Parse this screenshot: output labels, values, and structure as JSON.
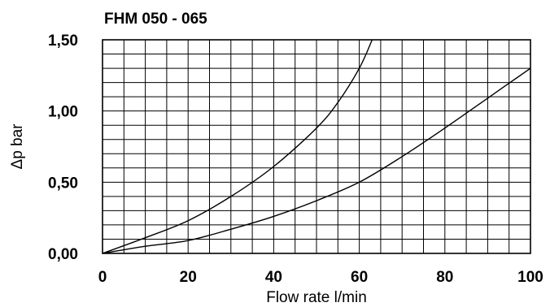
{
  "chart_data": {
    "type": "line",
    "title": "FHM 050 - 065",
    "xlabel": "Flow rate l/min",
    "ylabel": "Δp bar",
    "xlim": [
      0,
      100
    ],
    "ylim": [
      0,
      1.5
    ],
    "grid": true,
    "x_ticks": [
      {
        "value": 0,
        "label": "0"
      },
      {
        "value": 20,
        "label": "20"
      },
      {
        "value": 40,
        "label": "40"
      },
      {
        "value": 60,
        "label": "60"
      },
      {
        "value": 80,
        "label": "80"
      },
      {
        "value": 100,
        "label": "100"
      }
    ],
    "y_ticks": [
      {
        "value": 0,
        "label": "0,00"
      },
      {
        "value": 0.5,
        "label": "0,50"
      },
      {
        "value": 1.0,
        "label": "1,00"
      },
      {
        "value": 1.5,
        "label": "1,50"
      }
    ],
    "series": [
      {
        "x": [
          0,
          10,
          20,
          30,
          40,
          50,
          55,
          60,
          63
        ],
        "y": [
          0,
          0.11,
          0.23,
          0.4,
          0.61,
          0.88,
          1.06,
          1.3,
          1.5
        ]
      },
      {
        "x": [
          0,
          10,
          20,
          30,
          40,
          50,
          60,
          70,
          80,
          90,
          100
        ],
        "y": [
          0,
          0.05,
          0.09,
          0.17,
          0.26,
          0.37,
          0.5,
          0.68,
          0.88,
          1.09,
          1.3
        ]
      }
    ]
  }
}
